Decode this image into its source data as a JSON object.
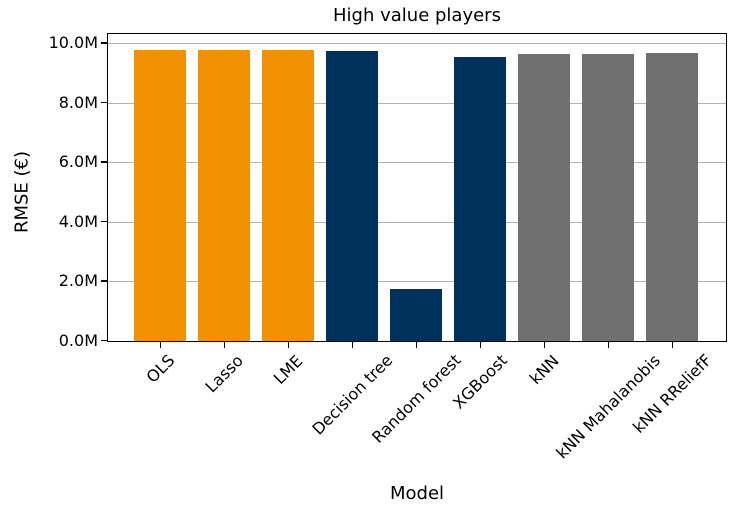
{
  "chart_data": {
    "type": "bar",
    "title": "High value players",
    "xlabel": "Model",
    "ylabel": "RMSE (€)",
    "categories": [
      "OLS",
      "Lasso",
      "LME",
      "Decision tree",
      "Random forest",
      "XGBoost",
      "kNN",
      "kNN Mahalanobis",
      "kNN RReliefF"
    ],
    "values": [
      9.79,
      9.79,
      9.79,
      9.76,
      1.74,
      9.53,
      9.64,
      9.66,
      9.67
    ],
    "values_unit_suffix": "M",
    "bar_colors": [
      "#F29202",
      "#F29202",
      "#F29202",
      "#00305C",
      "#00305C",
      "#00305C",
      "#707070",
      "#707070",
      "#707070"
    ],
    "color_groups": {
      "linear_models": "#F29202",
      "tree_models": "#00305C",
      "knn_models": "#707070"
    },
    "ytick_labels": [
      "0.0M",
      "2.0M",
      "4.0M",
      "6.0M",
      "8.0M",
      "10.0M"
    ],
    "ytick_values": [
      0,
      2,
      4,
      6,
      8,
      10
    ],
    "ylim": [
      0,
      10.3
    ],
    "grid": "horizontal",
    "grid_color": "#B0B0B0",
    "axis_color": "#000000",
    "background_color": "#FFFFFF",
    "legend": null
  }
}
